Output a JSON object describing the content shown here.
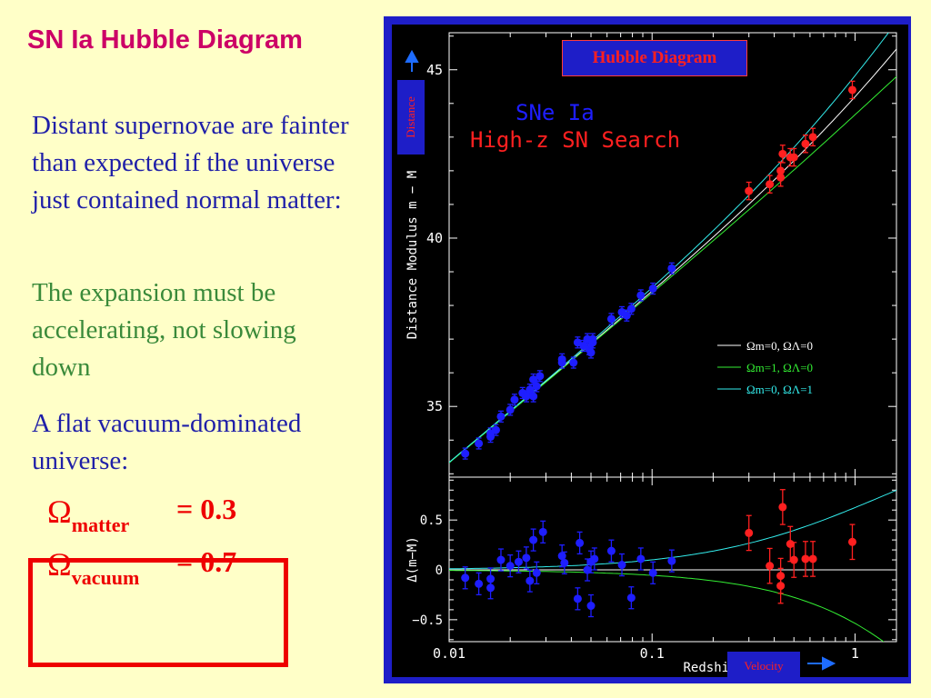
{
  "slide": {
    "title": "SN Ia Hubble Diagram",
    "para1": "Distant supernovae are fainter than expected if the universe just contained normal matter:",
    "para2": "The expansion must be accelerating, not slowing down",
    "para3": "A flat vacuum-dominated universe:",
    "omega_symbol": "Ω",
    "omega_matter_sub": "matter",
    "omega_matter_value": "= 0.3",
    "omega_vacuum_sub": "vacuum",
    "omega_vacuum_value": "= 0.7"
  },
  "colors": {
    "title": "#cc0066",
    "body_blue": "#1f1fa8",
    "body_green": "#3a8a3a",
    "highlight_red": "#ee0000",
    "frame_blue": "#1e1ec8",
    "plot_bg": "#000000",
    "near_sn": "#1e1eff",
    "highz_sn": "#ff2020",
    "model_white": "#ffffff",
    "model_green": "#33ee33",
    "model_cyan": "#33eeee"
  },
  "badges": {
    "hubble": "Hubble Diagram",
    "distance": "Distance",
    "velocity": "Velocity"
  },
  "chart_data": {
    "type": "scatter",
    "xlabel": "Redshift z",
    "xscale": "log",
    "xlim": [
      0.01,
      1.6
    ],
    "xticks": [
      0.01,
      0.1,
      1
    ],
    "xticklabels": [
      "0.01",
      "0.1",
      "1"
    ],
    "legend_text": [
      "SNe Ia",
      "High-z SN Search"
    ],
    "model_legend": [
      "Ωm=0,  ΩΛ=0",
      "Ωm=1,  ΩΛ=0",
      "Ωm=0,  ΩΛ=1"
    ],
    "top_panel": {
      "ylabel": "Distance Modulus m − M",
      "ylim": [
        32.9,
        46.1
      ],
      "yticks": [
        35,
        40,
        45
      ],
      "series": [
        {
          "name": "SNe Ia",
          "x": [
            0.012,
            0.014,
            0.016,
            0.016,
            0.017,
            0.018,
            0.02,
            0.021,
            0.023,
            0.024,
            0.025,
            0.026,
            0.026,
            0.027,
            0.028,
            0.036,
            0.036,
            0.041,
            0.043,
            0.046,
            0.048,
            0.049,
            0.05,
            0.051,
            0.051,
            0.063,
            0.071,
            0.075,
            0.079,
            0.088,
            0.101,
            0.125
          ],
          "y": [
            33.6,
            33.9,
            34.2,
            34.1,
            34.3,
            34.7,
            34.9,
            35.2,
            35.4,
            35.3,
            35.5,
            35.8,
            35.3,
            35.6,
            35.9,
            36.3,
            36.4,
            36.3,
            36.9,
            36.8,
            37.0,
            36.7,
            36.6,
            36.9,
            37.0,
            37.6,
            37.8,
            37.7,
            37.9,
            38.3,
            38.5,
            39.1
          ]
        },
        {
          "name": "High-z SN Search",
          "x": [
            0.3,
            0.38,
            0.43,
            0.43,
            0.44,
            0.48,
            0.5,
            0.57,
            0.62,
            0.97
          ],
          "y": [
            41.4,
            41.6,
            41.8,
            42.0,
            42.5,
            42.4,
            42.4,
            42.8,
            43.0,
            44.4
          ]
        }
      ]
    },
    "bottom_panel": {
      "ylabel": "Δ(m−M)",
      "ylim": [
        -0.72,
        0.93
      ],
      "yticks": [
        -0.5,
        0,
        0.5
      ],
      "series": [
        {
          "name": "SNe Ia",
          "x": [
            0.012,
            0.014,
            0.016,
            0.016,
            0.018,
            0.02,
            0.022,
            0.024,
            0.025,
            0.026,
            0.027,
            0.029,
            0.036,
            0.037,
            0.043,
            0.044,
            0.048,
            0.05,
            0.05,
            0.052,
            0.063,
            0.071,
            0.079,
            0.088,
            0.101,
            0.125
          ],
          "y": [
            -0.08,
            -0.14,
            -0.09,
            -0.18,
            0.1,
            0.04,
            0.08,
            0.12,
            -0.11,
            0.3,
            -0.03,
            0.38,
            0.14,
            0.07,
            -0.29,
            0.27,
            0.0,
            -0.36,
            0.08,
            0.11,
            0.19,
            0.05,
            -0.28,
            0.11,
            -0.03,
            0.09
          ]
        },
        {
          "name": "High-z SN Search",
          "x": [
            0.3,
            0.38,
            0.43,
            0.43,
            0.44,
            0.48,
            0.5,
            0.57,
            0.62,
            0.97
          ],
          "y": [
            0.37,
            0.04,
            -0.06,
            -0.16,
            0.63,
            0.26,
            0.1,
            0.11,
            0.11,
            0.28
          ]
        }
      ]
    }
  }
}
